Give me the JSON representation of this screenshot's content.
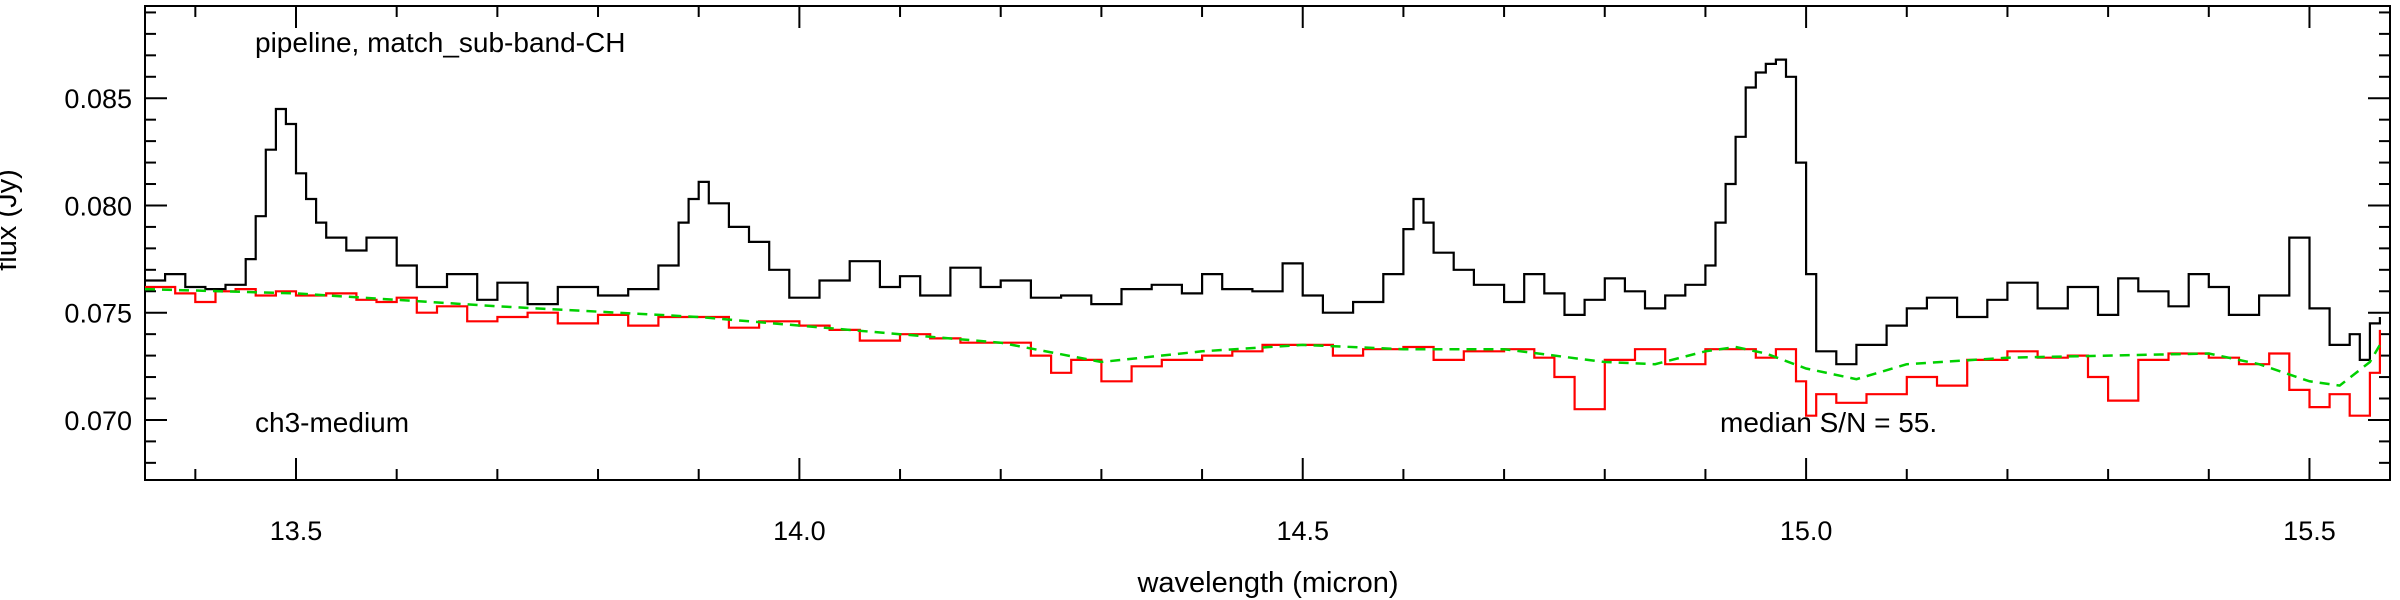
{
  "chart_data": {
    "type": "line",
    "title": "",
    "xlabel": "wavelength (micron)",
    "ylabel": "flux (Jy)",
    "xlim": [
      13.35,
      15.58
    ],
    "ylim": [
      0.0672,
      0.0893
    ],
    "x_ticks": [
      13.5,
      14.0,
      14.5,
      15.0,
      15.5
    ],
    "x_tick_labels": [
      "13.5",
      "14.0",
      "14.5",
      "15.0",
      "15.5"
    ],
    "y_ticks": [
      0.07,
      0.075,
      0.08,
      0.085
    ],
    "y_tick_labels": [
      "0.070",
      "0.075",
      "0.080",
      "0.085"
    ],
    "annotations": {
      "top_left": "pipeline, match_sub-band-CH",
      "bottom_left": "ch3-medium",
      "bottom_right": "median S/N =  55."
    },
    "series": [
      {
        "color": "#000000",
        "style": "step",
        "x": [
          13.35,
          13.37,
          13.39,
          13.41,
          13.43,
          13.45,
          13.46,
          13.47,
          13.48,
          13.49,
          13.5,
          13.51,
          13.52,
          13.53,
          13.55,
          13.57,
          13.6,
          13.62,
          13.65,
          13.68,
          13.7,
          13.73,
          13.76,
          13.8,
          13.83,
          13.86,
          13.88,
          13.89,
          13.9,
          13.91,
          13.93,
          13.95,
          13.97,
          13.99,
          14.02,
          14.05,
          14.08,
          14.1,
          14.12,
          14.15,
          14.18,
          14.2,
          14.23,
          14.26,
          14.29,
          14.32,
          14.35,
          14.38,
          14.4,
          14.42,
          14.45,
          14.48,
          14.5,
          14.52,
          14.55,
          14.58,
          14.6,
          14.61,
          14.62,
          14.63,
          14.65,
          14.67,
          14.7,
          14.72,
          14.74,
          14.76,
          14.78,
          14.8,
          14.82,
          14.84,
          14.86,
          14.88,
          14.9,
          14.91,
          14.92,
          14.93,
          14.94,
          14.95,
          14.96,
          14.97,
          14.98,
          14.99,
          15.0,
          15.01,
          15.03,
          15.05,
          15.08,
          15.1,
          15.12,
          15.15,
          15.18,
          15.2,
          15.23,
          15.26,
          15.29,
          15.31,
          15.33,
          15.36,
          15.38,
          15.4,
          15.42,
          15.45,
          15.48,
          15.5,
          15.52,
          15.54,
          15.55,
          15.56,
          15.57
        ],
        "y": [
          0.0765,
          0.0768,
          0.0762,
          0.0761,
          0.0763,
          0.0775,
          0.0795,
          0.0826,
          0.0845,
          0.0838,
          0.0815,
          0.0803,
          0.0792,
          0.0785,
          0.0779,
          0.0785,
          0.0772,
          0.0762,
          0.0768,
          0.0756,
          0.0764,
          0.0754,
          0.0762,
          0.0758,
          0.0761,
          0.0772,
          0.0792,
          0.0803,
          0.0811,
          0.0801,
          0.079,
          0.0783,
          0.077,
          0.0757,
          0.0765,
          0.0774,
          0.0762,
          0.0767,
          0.0758,
          0.0771,
          0.0762,
          0.0765,
          0.0757,
          0.0758,
          0.0754,
          0.0761,
          0.0763,
          0.0759,
          0.0768,
          0.0761,
          0.076,
          0.0773,
          0.0758,
          0.075,
          0.0755,
          0.0768,
          0.0789,
          0.0803,
          0.0792,
          0.0778,
          0.077,
          0.0763,
          0.0755,
          0.0768,
          0.0759,
          0.0749,
          0.0756,
          0.0766,
          0.076,
          0.0752,
          0.0758,
          0.0763,
          0.0772,
          0.0792,
          0.081,
          0.0832,
          0.0855,
          0.0862,
          0.0866,
          0.0868,
          0.086,
          0.082,
          0.0768,
          0.0732,
          0.0726,
          0.0735,
          0.0744,
          0.0752,
          0.0757,
          0.0748,
          0.0756,
          0.0764,
          0.0752,
          0.0762,
          0.0749,
          0.0766,
          0.076,
          0.0753,
          0.0768,
          0.0762,
          0.0749,
          0.0758,
          0.0785,
          0.0752,
          0.0735,
          0.074,
          0.0728,
          0.0745,
          0.0748
        ]
      },
      {
        "color": "#ff0000",
        "style": "step",
        "x": [
          13.35,
          13.38,
          13.4,
          13.42,
          13.44,
          13.46,
          13.48,
          13.5,
          13.53,
          13.56,
          13.58,
          13.6,
          13.62,
          13.64,
          13.67,
          13.7,
          13.73,
          13.76,
          13.8,
          13.83,
          13.86,
          13.9,
          13.93,
          13.96,
          14.0,
          14.03,
          14.06,
          14.1,
          14.13,
          14.16,
          14.2,
          14.23,
          14.25,
          14.27,
          14.3,
          14.33,
          14.36,
          14.4,
          14.43,
          14.46,
          14.5,
          14.53,
          14.56,
          14.6,
          14.63,
          14.66,
          14.7,
          14.73,
          14.75,
          14.77,
          14.8,
          14.83,
          14.86,
          14.9,
          14.93,
          14.95,
          14.97,
          14.99,
          15.0,
          15.01,
          15.03,
          15.06,
          15.1,
          15.13,
          15.16,
          15.2,
          15.23,
          15.26,
          15.28,
          15.3,
          15.33,
          15.36,
          15.4,
          15.43,
          15.46,
          15.48,
          15.5,
          15.52,
          15.54,
          15.56,
          15.57
        ],
        "y": [
          0.0762,
          0.0759,
          0.0755,
          0.076,
          0.0761,
          0.0758,
          0.076,
          0.0758,
          0.0759,
          0.0756,
          0.0755,
          0.0757,
          0.075,
          0.0753,
          0.0746,
          0.0748,
          0.075,
          0.0745,
          0.0749,
          0.0744,
          0.0748,
          0.0748,
          0.0743,
          0.0746,
          0.0744,
          0.0742,
          0.0737,
          0.074,
          0.0738,
          0.0736,
          0.0736,
          0.073,
          0.0722,
          0.0728,
          0.0718,
          0.0725,
          0.0728,
          0.073,
          0.0732,
          0.0735,
          0.0735,
          0.073,
          0.0733,
          0.0734,
          0.0728,
          0.0732,
          0.0733,
          0.0729,
          0.072,
          0.0705,
          0.0728,
          0.0733,
          0.0726,
          0.0733,
          0.0733,
          0.0729,
          0.0733,
          0.0718,
          0.0702,
          0.0712,
          0.0708,
          0.0712,
          0.072,
          0.0716,
          0.0728,
          0.0732,
          0.0729,
          0.073,
          0.072,
          0.0709,
          0.0728,
          0.0731,
          0.0729,
          0.0726,
          0.0731,
          0.0714,
          0.0706,
          0.0712,
          0.0702,
          0.0722,
          0.0742
        ]
      },
      {
        "color": "#00d000",
        "style": "dashed",
        "x": [
          13.35,
          13.5,
          13.7,
          13.9,
          14.1,
          14.2,
          14.3,
          14.4,
          14.5,
          14.6,
          14.7,
          14.8,
          14.85,
          14.9,
          14.93,
          14.96,
          15.0,
          15.05,
          15.1,
          15.2,
          15.3,
          15.4,
          15.45,
          15.5,
          15.53,
          15.56,
          15.57
        ],
        "y": [
          0.0761,
          0.0759,
          0.0753,
          0.0748,
          0.074,
          0.0736,
          0.0727,
          0.0732,
          0.0735,
          0.0733,
          0.0733,
          0.0727,
          0.0726,
          0.0732,
          0.0734,
          0.0731,
          0.0724,
          0.0719,
          0.0726,
          0.0729,
          0.073,
          0.0731,
          0.0726,
          0.0718,
          0.0716,
          0.0727,
          0.0735
        ]
      }
    ]
  }
}
